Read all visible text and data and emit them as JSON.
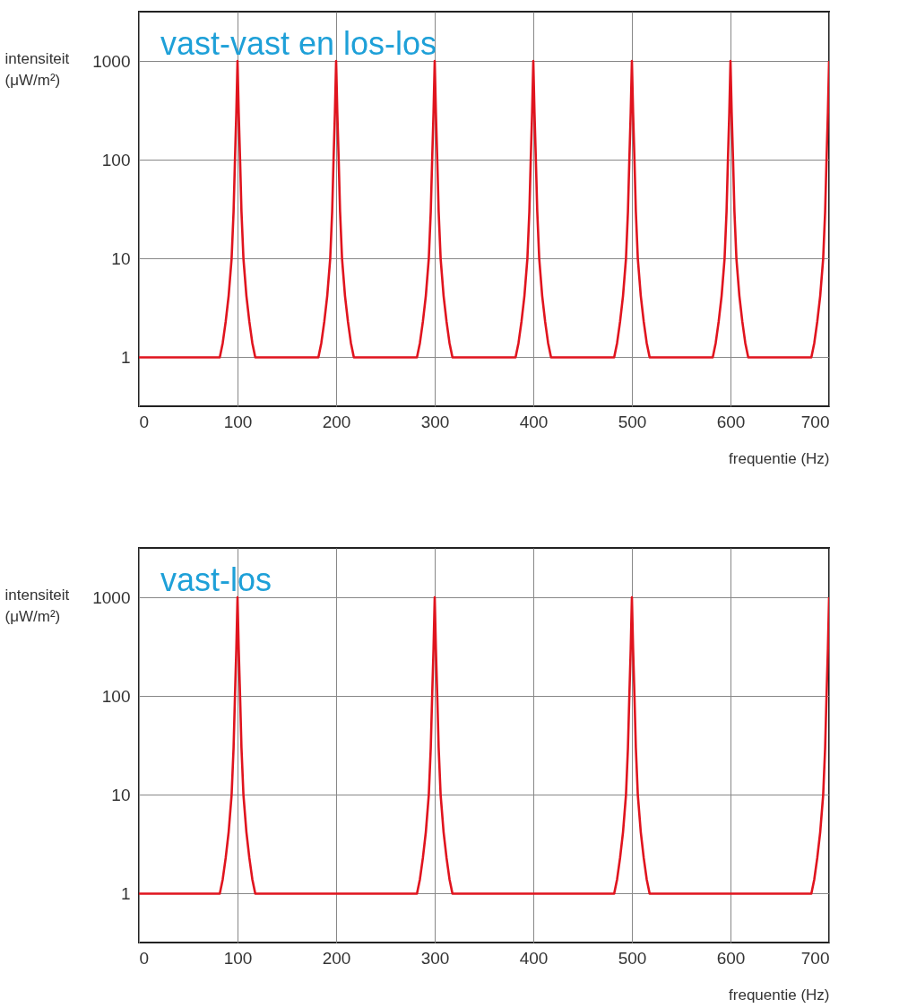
{
  "chart_data": [
    {
      "type": "line",
      "annotations": [
        "vast-vast en los-los"
      ],
      "xlabel": "frequentie (Hz)",
      "ylabel": "intensiteit (μW/m²)",
      "log": "y",
      "grid": true,
      "line_style": "solid",
      "xlim": [
        0,
        700
      ],
      "xticks": [
        0,
        100,
        200,
        300,
        400,
        500,
        600,
        700
      ],
      "ylim": [
        0.32,
        3160
      ],
      "yticks": [
        1,
        10,
        100,
        1000
      ],
      "x": [
        0,
        82,
        85,
        88,
        91,
        94,
        96,
        97.4,
        98.8,
        100,
        101.2,
        102.6,
        104,
        106,
        109,
        112,
        115,
        118,
        182,
        185,
        188,
        191,
        194,
        196,
        197.4,
        198.8,
        200,
        201.2,
        202.6,
        204,
        206,
        209,
        212,
        215,
        218,
        282,
        285,
        288,
        291,
        294,
        296,
        297.4,
        298.8,
        300,
        301.2,
        302.6,
        304,
        306,
        309,
        312,
        315,
        318,
        382,
        385,
        388,
        391,
        394,
        396,
        397.4,
        398.8,
        400,
        401.2,
        402.6,
        404,
        406,
        409,
        412,
        415,
        418,
        482,
        485,
        488,
        491,
        494,
        496,
        497.4,
        498.8,
        500,
        501.2,
        502.6,
        504,
        506,
        509,
        512,
        515,
        518,
        582,
        585,
        588,
        591,
        594,
        596,
        597.4,
        598.8,
        600,
        601.2,
        602.6,
        604,
        606,
        609,
        612,
        615,
        618,
        682,
        685,
        688,
        691,
        694,
        696,
        697.4,
        698.8,
        700
      ],
      "series": [
        {
          "color": "#e0141e",
          "values": [
            1,
            1,
            1.4,
            2.3,
            4.2,
            10,
            30,
            100,
            300,
            1000,
            300,
            100,
            30,
            10,
            4.2,
            2.3,
            1.4,
            1,
            1,
            1.4,
            2.3,
            4.2,
            10,
            30,
            100,
            300,
            1000,
            300,
            100,
            30,
            10,
            4.2,
            2.3,
            1.4,
            1,
            1,
            1.4,
            2.3,
            4.2,
            10,
            30,
            100,
            300,
            1000,
            300,
            100,
            30,
            10,
            4.2,
            2.3,
            1.4,
            1,
            1,
            1.4,
            2.3,
            4.2,
            10,
            30,
            100,
            300,
            1000,
            300,
            100,
            30,
            10,
            4.2,
            2.3,
            1.4,
            1,
            1,
            1.4,
            2.3,
            4.2,
            10,
            30,
            100,
            300,
            1000,
            300,
            100,
            30,
            10,
            4.2,
            2.3,
            1.4,
            1,
            1,
            1.4,
            2.3,
            4.2,
            10,
            30,
            100,
            300,
            1000,
            300,
            100,
            30,
            10,
            4.2,
            2.3,
            1.4,
            1,
            1,
            1.4,
            2.3,
            4.2,
            10,
            30,
            100,
            300,
            1000
          ]
        }
      ]
    },
    {
      "type": "line",
      "annotations": [
        "vast-los"
      ],
      "xlabel": "frequentie (Hz)",
      "ylabel": "intensiteit (μW/m²)",
      "log": "y",
      "grid": true,
      "line_style": "solid",
      "xlim": [
        0,
        700
      ],
      "xticks": [
        0,
        100,
        200,
        300,
        400,
        500,
        600,
        700
      ],
      "ylim": [
        0.32,
        3160
      ],
      "yticks": [
        1,
        10,
        100,
        1000
      ],
      "x": [
        0,
        82,
        85,
        88,
        91,
        94,
        96,
        97.4,
        98.8,
        100,
        101.2,
        102.6,
        104,
        106,
        109,
        112,
        115,
        118,
        282,
        285,
        288,
        291,
        294,
        296,
        297.4,
        298.8,
        300,
        301.2,
        302.6,
        304,
        306,
        309,
        312,
        315,
        318,
        482,
        485,
        488,
        491,
        494,
        496,
        497.4,
        498.8,
        500,
        501.2,
        502.6,
        504,
        506,
        509,
        512,
        515,
        518,
        682,
        685,
        688,
        691,
        694,
        696,
        697.4,
        698.8,
        700
      ],
      "series": [
        {
          "color": "#e0141e",
          "values": [
            1,
            1,
            1.4,
            2.3,
            4.2,
            10,
            30,
            100,
            300,
            1000,
            300,
            100,
            30,
            10,
            4.2,
            2.3,
            1.4,
            1,
            1,
            1.4,
            2.3,
            4.2,
            10,
            30,
            100,
            300,
            1000,
            300,
            100,
            30,
            10,
            4.2,
            2.3,
            1.4,
            1,
            1,
            1.4,
            2.3,
            4.2,
            10,
            30,
            100,
            300,
            1000,
            300,
            100,
            30,
            10,
            4.2,
            2.3,
            1.4,
            1,
            1,
            1.4,
            2.3,
            4.2,
            10,
            30,
            100,
            300,
            1000
          ]
        }
      ]
    }
  ]
}
